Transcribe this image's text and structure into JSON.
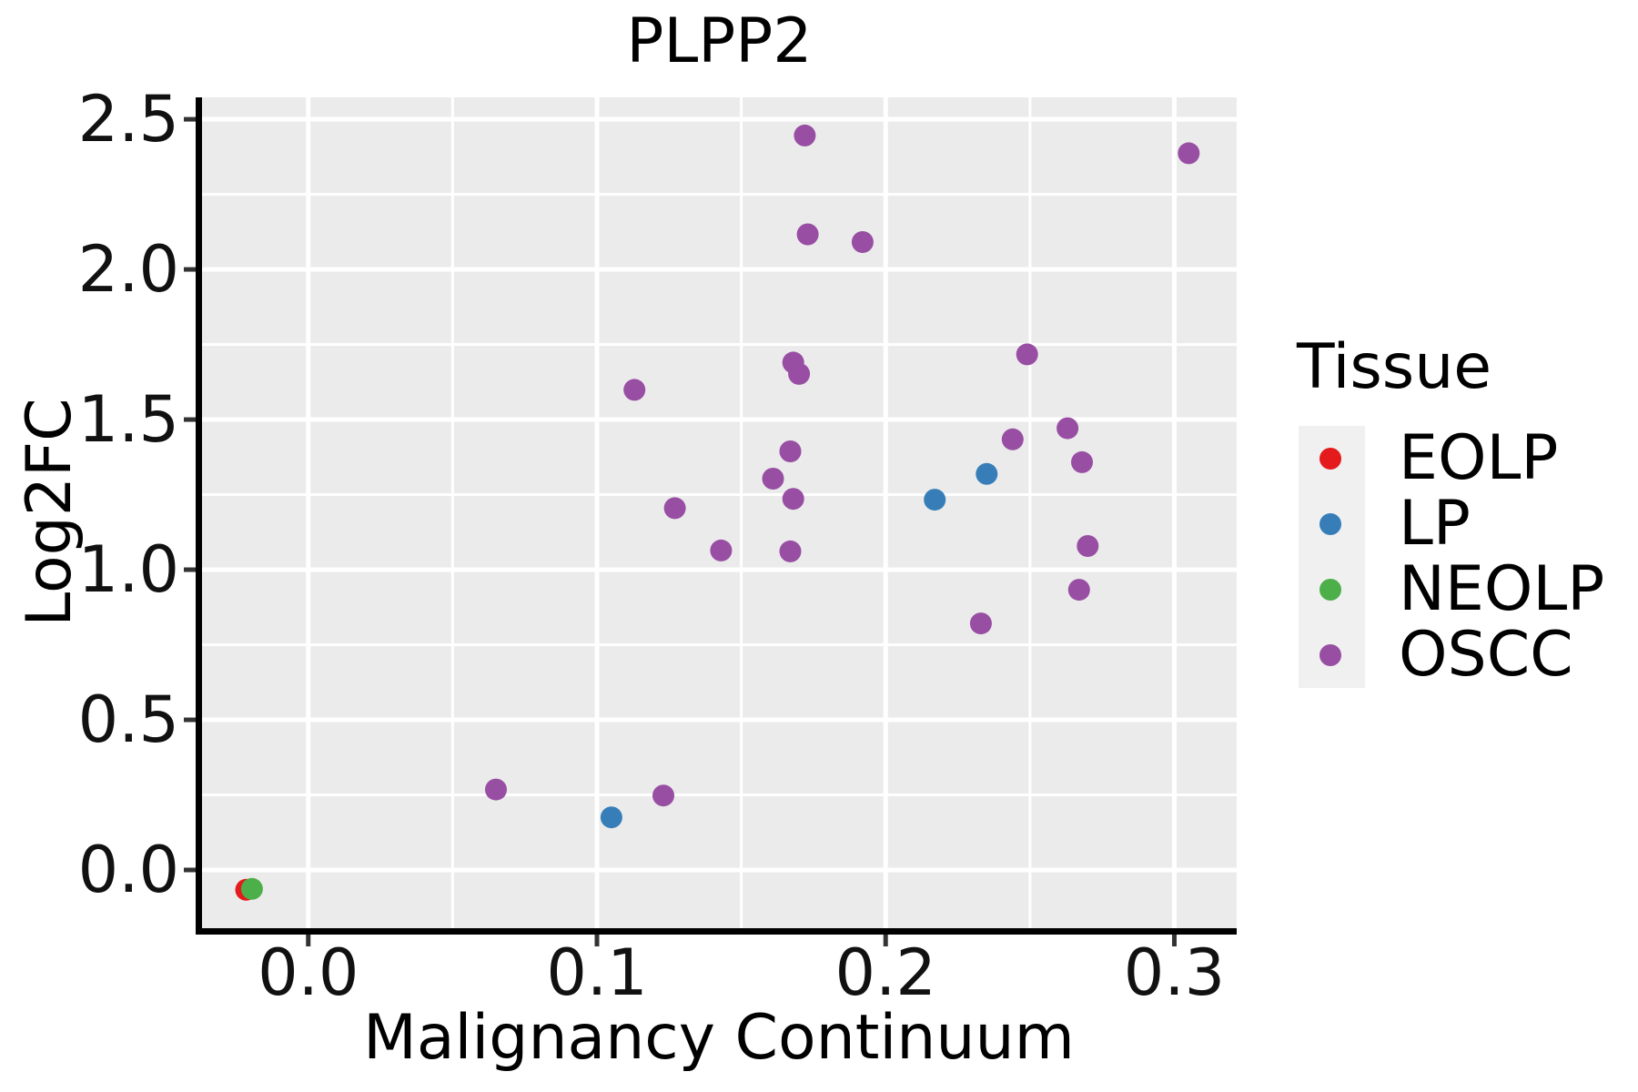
{
  "figure": {
    "title": "PLPP2",
    "x_axis": {
      "label": "Malignancy Continuum",
      "tick_labels": [
        "0.0",
        "0.1",
        "0.2",
        "0.3"
      ]
    },
    "y_axis": {
      "label": "Log2FC",
      "tick_labels": [
        "0.0",
        "0.5",
        "1.0",
        "1.5",
        "2.0",
        "2.5"
      ]
    }
  },
  "legend": {
    "title": "Tissue",
    "items": [
      {
        "label": "EOLP",
        "color": "#E41A1C"
      },
      {
        "label": "LP",
        "color": "#377EB8"
      },
      {
        "label": "NEOLP",
        "color": "#4DAF4A"
      },
      {
        "label": "OSCC",
        "color": "#984EA3"
      }
    ]
  },
  "chart_data": {
    "type": "scatter",
    "title": "PLPP2",
    "xlabel": "Malignancy Continuum",
    "ylabel": "Log2FC",
    "xlim": [
      -0.0368,
      0.3216
    ],
    "ylim": [
      -0.194,
      2.573
    ],
    "x_major_ticks": [
      0.0,
      0.1,
      0.2,
      0.3
    ],
    "x_minor_gridlines": [
      0.05,
      0.15,
      0.25
    ],
    "y_major_ticks": [
      0.0,
      0.5,
      1.0,
      1.5,
      2.0,
      2.5
    ],
    "y_minor_gridlines": [
      0.25,
      0.75,
      1.25,
      1.75,
      2.25
    ],
    "grid": true,
    "legend_position": "right",
    "marker_radius_px": 12,
    "panel_bg": "#EBEBEB",
    "grid_color": "#FFFFFF",
    "axis_color": "#000000",
    "legend_key_bg": "#F0F0F0",
    "series": [
      {
        "name": "EOLP",
        "color": "#E41A1C",
        "points": [
          [
            -0.0215,
            -0.066
          ]
        ]
      },
      {
        "name": "LP",
        "color": "#377EB8",
        "points": [
          [
            0.105,
            0.175
          ],
          [
            0.217,
            1.233
          ],
          [
            0.235,
            1.319
          ]
        ]
      },
      {
        "name": "NEOLP",
        "color": "#4DAF4A",
        "points": [
          [
            -0.0195,
            -0.063
          ]
        ]
      },
      {
        "name": "OSCC",
        "color": "#984EA3",
        "points": [
          [
            0.065,
            0.268
          ],
          [
            0.113,
            1.599
          ],
          [
            0.123,
            0.248
          ],
          [
            0.127,
            1.205
          ],
          [
            0.143,
            1.064
          ],
          [
            0.161,
            1.303
          ],
          [
            0.167,
            1.061
          ],
          [
            0.167,
            1.394
          ],
          [
            0.168,
            1.236
          ],
          [
            0.168,
            1.69
          ],
          [
            0.17,
            1.652
          ],
          [
            0.172,
            2.446
          ],
          [
            0.173,
            2.117
          ],
          [
            0.192,
            2.091
          ],
          [
            0.233,
            0.821
          ],
          [
            0.244,
            1.434
          ],
          [
            0.249,
            1.717
          ],
          [
            0.263,
            1.471
          ],
          [
            0.267,
            0.933
          ],
          [
            0.268,
            1.358
          ],
          [
            0.27,
            1.079
          ],
          [
            0.305,
            2.387
          ]
        ]
      }
    ]
  }
}
